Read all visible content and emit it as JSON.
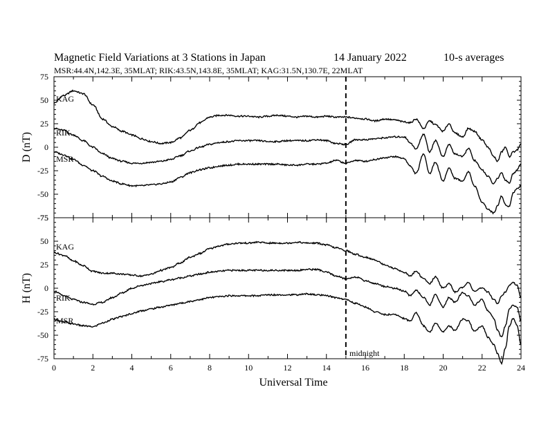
{
  "figure": {
    "title": "Magnetic Field Variations at 3 Stations in Japan",
    "date": "14 January 2022",
    "averaging": "10-s averages",
    "stations_line": "MSR:44.4N,142.3E, 35MLAT;  RIK:43.5N,143.8E, 35MLAT;  KAG:31.5N,130.7E, 22MLAT",
    "xlabel": "Universal Time",
    "midnight_label": "midnight"
  },
  "chart_data": [
    {
      "type": "line",
      "panel": "D",
      "ylabel": "D (nT)",
      "xlim": [
        0,
        24
      ],
      "ylim": [
        -75,
        75
      ],
      "x_ticks": [
        0,
        2,
        4,
        6,
        8,
        10,
        12,
        14,
        16,
        18,
        20,
        22,
        24
      ],
      "y_ticks": [
        -75,
        -50,
        -25,
        0,
        25,
        50,
        75
      ],
      "vline_x": 15,
      "series": [
        {
          "name": "KAG",
          "x": [
            0,
            0.5,
            1,
            1.5,
            2,
            2.5,
            3,
            3.5,
            4,
            4.5,
            5,
            5.5,
            6,
            6.5,
            7,
            7.5,
            8,
            8.5,
            9,
            9.5,
            10,
            10.5,
            11,
            11.5,
            12,
            12.5,
            13,
            13.5,
            14,
            14.5,
            15,
            15.5,
            16,
            16.5,
            17,
            17.5,
            18,
            18.3,
            18.6,
            19,
            19.3,
            19.6,
            20,
            20.3,
            20.6,
            21,
            21.3,
            21.6,
            22,
            22.3,
            22.6,
            22.8,
            23,
            23.2,
            23.4,
            23.6,
            23.8,
            24
          ],
          "y": [
            47,
            55,
            60,
            57,
            45,
            30,
            22,
            17,
            13,
            9,
            6,
            4,
            5,
            10,
            18,
            26,
            32,
            34,
            34,
            33,
            33,
            32,
            33,
            34,
            33,
            32,
            33,
            32,
            33,
            32,
            32,
            31,
            30,
            28,
            30,
            29,
            27,
            26,
            30,
            20,
            28,
            24,
            17,
            25,
            15,
            11,
            20,
            17,
            8,
            0,
            -10,
            -15,
            -5,
            0,
            -10,
            -5,
            -3,
            3
          ]
        },
        {
          "name": "RIK",
          "x": [
            0,
            0.5,
            1,
            1.5,
            2,
            2.5,
            3,
            3.5,
            4,
            4.5,
            5,
            5.5,
            6,
            6.5,
            7,
            7.5,
            8,
            8.5,
            9,
            9.5,
            10,
            10.5,
            11,
            11.5,
            12,
            12.5,
            13,
            13.5,
            14,
            14.5,
            15,
            15.5,
            16,
            16.5,
            17,
            17.5,
            18,
            18.3,
            18.6,
            19,
            19.3,
            19.6,
            20,
            20.3,
            20.6,
            21,
            21.3,
            21.6,
            22,
            22.3,
            22.6,
            22.8,
            23,
            23.2,
            23.4,
            23.6,
            23.8,
            24
          ],
          "y": [
            20,
            18,
            13,
            7,
            0,
            -7,
            -12,
            -15,
            -17,
            -17,
            -16,
            -15,
            -13,
            -9,
            -4,
            0,
            3,
            5,
            6,
            7,
            7,
            7,
            6,
            6,
            7,
            7,
            7,
            8,
            7,
            4,
            3,
            8,
            8,
            9,
            10,
            11,
            11,
            5,
            -2,
            14,
            -5,
            7,
            -10,
            3,
            -7,
            -10,
            -1,
            -14,
            -24,
            -31,
            -39,
            -33,
            -27,
            -35,
            -38,
            -28,
            -24,
            -17
          ]
        },
        {
          "name": "MSR",
          "x": [
            0,
            0.5,
            1,
            1.5,
            2,
            2.5,
            3,
            3.5,
            4,
            4.5,
            5,
            5.5,
            6,
            6.5,
            7,
            7.5,
            8,
            8.5,
            9,
            9.5,
            10,
            10.5,
            11,
            11.5,
            12,
            12.5,
            13,
            13.5,
            14,
            14.5,
            15,
            15.5,
            16,
            16.5,
            17,
            17.5,
            18,
            18.3,
            18.6,
            19,
            19.3,
            19.6,
            20,
            20.3,
            20.6,
            21,
            21.3,
            21.6,
            22,
            22.3,
            22.6,
            22.8,
            23,
            23.2,
            23.4,
            23.6,
            23.8,
            24
          ],
          "y": [
            -5,
            -8,
            -13,
            -19,
            -25,
            -31,
            -36,
            -39,
            -41,
            -41,
            -40,
            -39,
            -37,
            -32,
            -27,
            -24,
            -22,
            -20,
            -19,
            -18,
            -18,
            -18,
            -18,
            -18,
            -19,
            -19,
            -18,
            -18,
            -17,
            -14,
            -17,
            -14,
            -15,
            -13,
            -11,
            -10,
            -12,
            -20,
            -28,
            -7,
            -28,
            -16,
            -36,
            -22,
            -33,
            -36,
            -26,
            -41,
            -58,
            -66,
            -70,
            -62,
            -52,
            -61,
            -63,
            -48,
            -44,
            -41
          ]
        }
      ]
    },
    {
      "type": "line",
      "panel": "H",
      "ylabel": "H (nT)",
      "xlim": [
        0,
        24
      ],
      "ylim": [
        -75,
        75
      ],
      "x_ticks": [
        0,
        2,
        4,
        6,
        8,
        10,
        12,
        14,
        16,
        18,
        20,
        22,
        24
      ],
      "y_ticks": [
        -75,
        -50,
        -25,
        0,
        25,
        50,
        75
      ],
      "vline_x": 15,
      "series": [
        {
          "name": "KAG",
          "x": [
            0,
            0.5,
            1,
            1.5,
            2,
            2.5,
            3,
            3.5,
            4,
            4.5,
            5,
            5.5,
            6,
            6.5,
            7,
            7.5,
            8,
            8.5,
            9,
            9.5,
            10,
            10.5,
            11,
            11.5,
            12,
            12.5,
            13,
            13.5,
            14,
            14.5,
            15,
            15.5,
            16,
            16.5,
            17,
            17.5,
            18,
            18.3,
            18.6,
            19,
            19.3,
            19.6,
            20,
            20.3,
            20.6,
            21,
            21.3,
            21.6,
            22,
            22.3,
            22.6,
            22.8,
            23,
            23.2,
            23.4,
            23.6,
            23.8,
            24
          ],
          "y": [
            38,
            35,
            29,
            24,
            18,
            16,
            16,
            15,
            14,
            13,
            15,
            19,
            22,
            27,
            33,
            37,
            42,
            45,
            47,
            48,
            48,
            49,
            48,
            48,
            48,
            49,
            48,
            48,
            46,
            43,
            40,
            36,
            33,
            30,
            25,
            21,
            17,
            13,
            18,
            10,
            5,
            12,
            0,
            5,
            -4,
            1,
            6,
            -3,
            0,
            -4,
            -12,
            -16,
            -8,
            -4,
            3,
            6,
            3,
            -10
          ]
        },
        {
          "name": "RIK",
          "x": [
            0,
            0.5,
            1,
            1.5,
            2,
            2.5,
            3,
            3.5,
            4,
            4.5,
            5,
            5.5,
            6,
            6.5,
            7,
            7.5,
            8,
            8.5,
            9,
            9.5,
            10,
            10.5,
            11,
            11.5,
            12,
            12.5,
            13,
            13.5,
            14,
            14.5,
            15,
            15.5,
            16,
            16.5,
            17,
            17.5,
            18,
            18.3,
            18.6,
            19,
            19.3,
            19.6,
            20,
            20.3,
            20.6,
            21,
            21.3,
            21.6,
            22,
            22.3,
            22.6,
            22.8,
            23,
            23.2,
            23.4,
            23.6,
            23.8,
            24
          ],
          "y": [
            -3,
            -8,
            -12,
            -15,
            -17,
            -15,
            -10,
            -5,
            0,
            3,
            5,
            7,
            9,
            11,
            13,
            15,
            17,
            18,
            19,
            19,
            19,
            19,
            19,
            19,
            19,
            19,
            20,
            20,
            17,
            13,
            10,
            12,
            8,
            5,
            2,
            0,
            -3,
            -8,
            -2,
            -10,
            -18,
            -7,
            -20,
            -10,
            -15,
            -5,
            -8,
            -18,
            -12,
            -24,
            -32,
            -45,
            -52,
            -40,
            -22,
            -18,
            -20,
            -35
          ]
        },
        {
          "name": "MSR",
          "x": [
            0,
            0.5,
            1,
            1.5,
            2,
            2.5,
            3,
            3.5,
            4,
            4.5,
            5,
            5.5,
            6,
            6.5,
            7,
            7.5,
            8,
            8.5,
            9,
            9.5,
            10,
            10.5,
            11,
            11.5,
            12,
            12.5,
            13,
            13.5,
            14,
            14.5,
            15,
            15.5,
            16,
            16.5,
            17,
            17.5,
            18,
            18.3,
            18.6,
            19,
            19.3,
            19.6,
            20,
            20.3,
            20.6,
            21,
            21.3,
            21.6,
            22,
            22.3,
            22.6,
            22.8,
            23,
            23.2,
            23.4,
            23.6,
            23.8,
            24
          ],
          "y": [
            -33,
            -36,
            -38,
            -40,
            -41,
            -37,
            -33,
            -30,
            -27,
            -24,
            -22,
            -20,
            -18,
            -16,
            -14,
            -12,
            -10,
            -9,
            -8,
            -8,
            -8,
            -8,
            -7,
            -7,
            -7,
            -7,
            -6,
            -7,
            -8,
            -10,
            -12,
            -16,
            -20,
            -25,
            -28,
            -28,
            -32,
            -35,
            -26,
            -40,
            -47,
            -37,
            -46,
            -40,
            -45,
            -33,
            -35,
            -46,
            -40,
            -52,
            -60,
            -70,
            -80,
            -63,
            -40,
            -32,
            -40,
            -60
          ]
        }
      ]
    }
  ]
}
